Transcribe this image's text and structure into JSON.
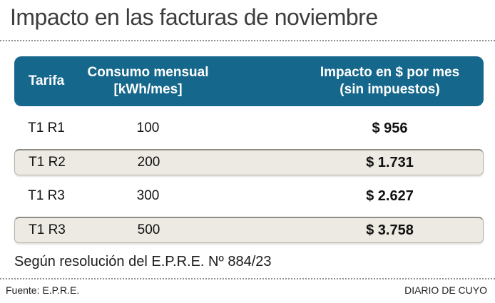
{
  "title": "Impacto en las facturas de noviembre",
  "table": {
    "columns": [
      {
        "label": "Tarifa",
        "sublabel": ""
      },
      {
        "label": "Consumo mensual",
        "sublabel": "[kWh/mes]"
      },
      {
        "label": "Impacto en $ por mes",
        "sublabel": "(sin impuestos)"
      }
    ],
    "rows": [
      {
        "tarifa": "T1 R1",
        "consumo": "100",
        "impacto": "$ 956"
      },
      {
        "tarifa": "T1 R2",
        "consumo": "200",
        "impacto": "$ 1.731"
      },
      {
        "tarifa": "T1 R3",
        "consumo": "300",
        "impacto": "$ 2.627"
      },
      {
        "tarifa": "T1 R3",
        "consumo": "500",
        "impacto": "$ 3.758"
      }
    ]
  },
  "note": "Según resolución del E.P.R.E. Nº 884/23",
  "footer": {
    "source": "Fuente: E.P.R.E.",
    "publisher": "DIARIO DE CUYO"
  },
  "colors": {
    "header_bg": "#16678c",
    "header_text": "#ffffff",
    "alt_row_bg": "#eceae2",
    "alt_row_border": "#b5b5ac",
    "title_text": "#3d3d3d",
    "body_text": "#111111",
    "dotted_divider": "#8f8f8f"
  },
  "chart_data": {
    "type": "table",
    "title": "Impacto en las facturas de noviembre",
    "columns": [
      "Tarifa",
      "Consumo mensual [kWh/mes]",
      "Impacto en $ por mes (sin impuestos)"
    ],
    "rows": [
      [
        "T1 R1",
        100,
        956
      ],
      [
        "T1 R2",
        200,
        1731
      ],
      [
        "T1 R3",
        300,
        2627
      ],
      [
        "T1 R3",
        500,
        3758
      ]
    ],
    "note": "Según resolución del E.P.R.E. Nº 884/23",
    "source": "Fuente: E.P.R.E.",
    "publisher": "DIARIO DE CUYO"
  }
}
